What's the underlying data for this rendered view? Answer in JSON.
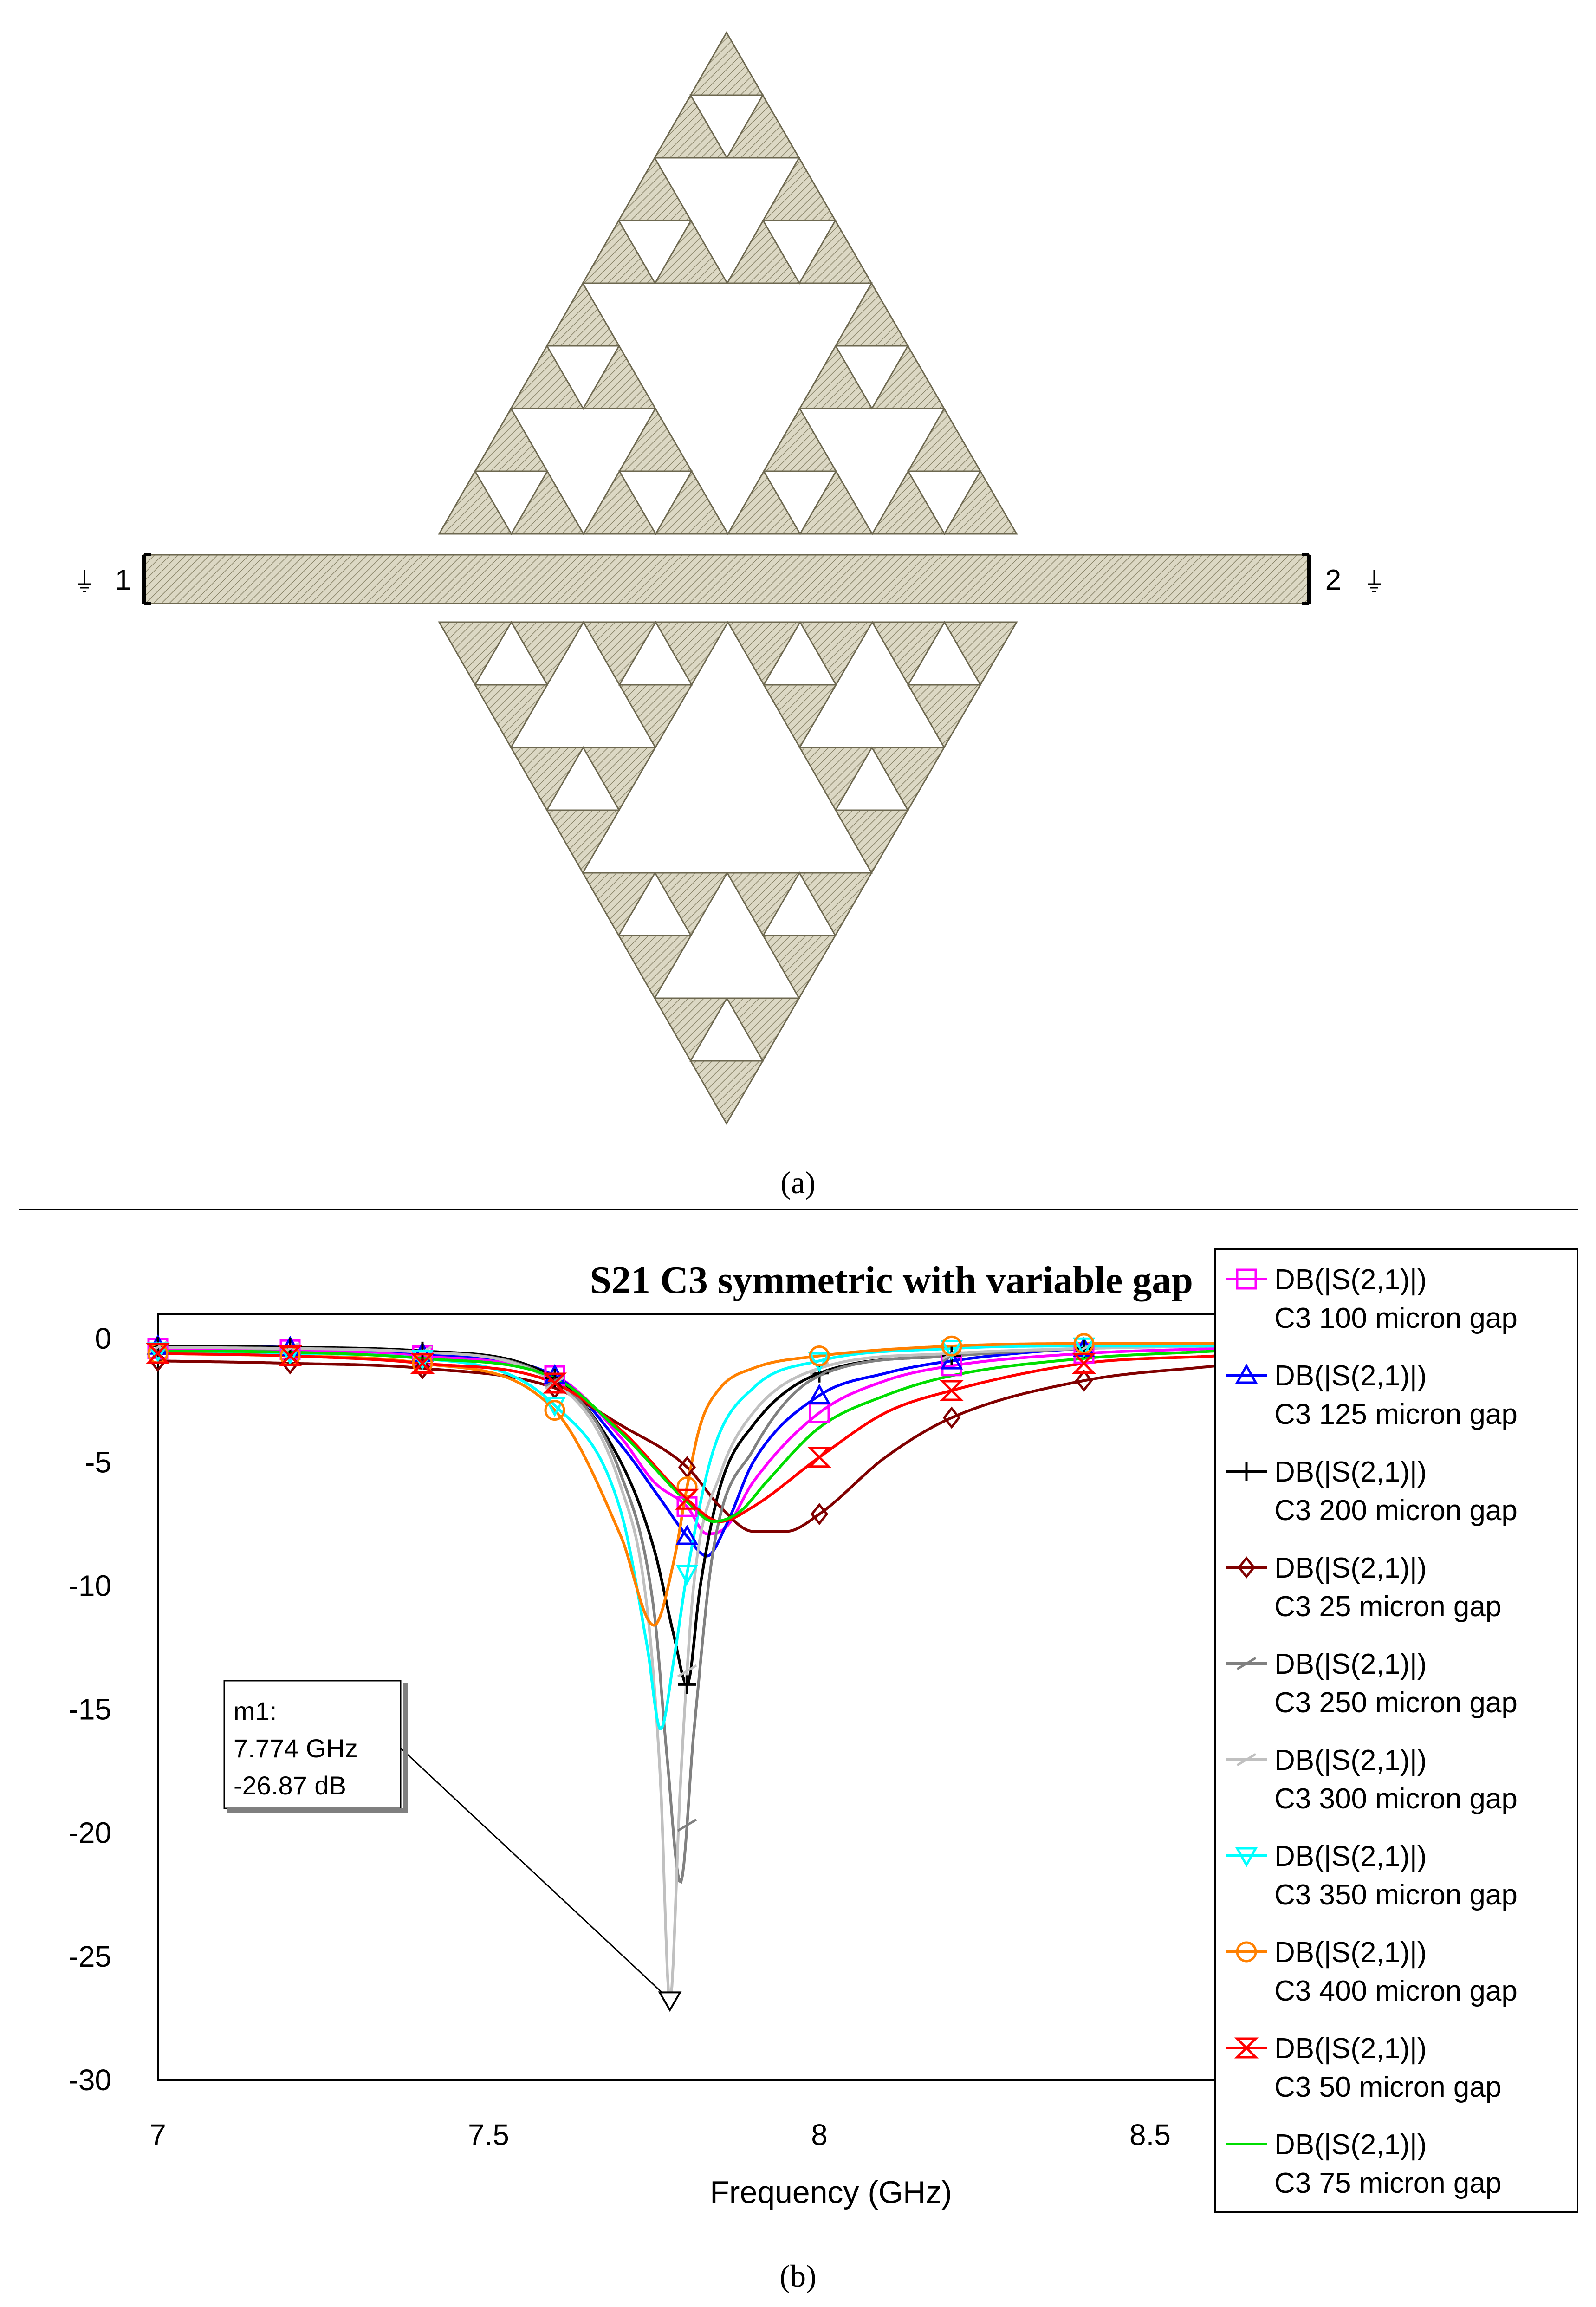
{
  "panel_a": {
    "caption": "(a)",
    "port_1": "1",
    "port_2": "2"
  },
  "panel_b": {
    "caption": "(b)"
  },
  "chart_data": {
    "type": "line",
    "title": "S21 C3 symmetric with variable gap",
    "xlabel": "Frequency (GHz)",
    "ylabel": "",
    "xlim": [
      7,
      8.6
    ],
    "ylim": [
      -30,
      1
    ],
    "xticks": [
      7,
      7.5,
      8,
      8.5
    ],
    "yticks": [
      0,
      -5,
      -10,
      -15,
      -20,
      -25,
      -30
    ],
    "grid": false,
    "legend": "right",
    "marker_x": [
      7.0,
      7.2,
      7.4,
      7.6,
      7.8,
      8.0,
      8.2,
      8.4
    ],
    "series": [
      {
        "name": "DB(|S(2,1)|)",
        "desc": "C3 100 micron gap",
        "color": "#ff00ff",
        "marker": "square",
        "x": [
          7.0,
          7.2,
          7.4,
          7.6,
          7.7,
          7.75,
          7.8,
          7.83,
          7.86,
          7.9,
          8.0,
          8.1,
          8.2,
          8.4,
          8.6
        ],
        "y": [
          -0.4,
          -0.45,
          -0.7,
          -1.5,
          -4.0,
          -5.8,
          -6.8,
          -7.9,
          -7.6,
          -5.8,
          -3.0,
          -1.7,
          -1.1,
          -0.6,
          -0.4
        ]
      },
      {
        "name": "DB(|S(2,1)|)",
        "desc": "C3 125 micron gap",
        "color": "#0000ff",
        "marker": "triangle-up",
        "x": [
          7.0,
          7.2,
          7.4,
          7.6,
          7.7,
          7.76,
          7.8,
          7.83,
          7.86,
          7.9,
          8.0,
          8.1,
          8.2,
          8.4,
          8.6
        ],
        "y": [
          -0.3,
          -0.35,
          -0.6,
          -1.5,
          -4.3,
          -6.5,
          -8.0,
          -8.8,
          -7.5,
          -5.0,
          -2.3,
          -1.4,
          -0.9,
          -0.4,
          -0.3
        ]
      },
      {
        "name": "DB(|S(2,1)|)",
        "desc": "C3 200 micron gap",
        "color": "#000000",
        "marker": "plus",
        "x": [
          7.0,
          7.2,
          7.4,
          7.6,
          7.7,
          7.75,
          7.78,
          7.8,
          7.82,
          7.85,
          7.9,
          8.0,
          8.2,
          8.4,
          8.6
        ],
        "y": [
          -0.3,
          -0.35,
          -0.5,
          -1.6,
          -5.0,
          -8.5,
          -12.0,
          -14.0,
          -10.0,
          -6.0,
          -3.5,
          -1.4,
          -0.7,
          -0.4,
          -0.3
        ]
      },
      {
        "name": "DB(|S(2,1)|)",
        "desc": "C3 25 micron gap",
        "color": "#800000",
        "marker": "diamond",
        "x": [
          7.0,
          7.2,
          7.4,
          7.6,
          7.7,
          7.8,
          7.85,
          7.9,
          7.95,
          8.0,
          8.1,
          8.2,
          8.4,
          8.6
        ],
        "y": [
          -0.9,
          -1.0,
          -1.2,
          -2.0,
          -3.5,
          -5.2,
          -6.8,
          -7.8,
          -7.8,
          -7.1,
          -4.8,
          -3.2,
          -1.7,
          -1.1
        ]
      },
      {
        "name": "DB(|S(2,1)|)",
        "desc": "C3 250  micron gap",
        "color": "#808080",
        "marker": "slash",
        "x": [
          7.0,
          7.2,
          7.4,
          7.6,
          7.7,
          7.75,
          7.77,
          7.79,
          7.81,
          7.84,
          7.9,
          8.0,
          8.2,
          8.4,
          8.6
        ],
        "y": [
          -0.35,
          -0.4,
          -0.55,
          -1.7,
          -5.5,
          -11.0,
          -17.0,
          -22.0,
          -16.0,
          -8.5,
          -4.5,
          -1.5,
          -0.7,
          -0.4,
          -0.3
        ]
      },
      {
        "name": "DB(|S(2,1)|)",
        "desc": "C3 300 micron gap",
        "color": "#c0c0c0",
        "marker": "slash",
        "x": [
          7.0,
          7.2,
          7.4,
          7.6,
          7.7,
          7.74,
          7.76,
          7.774,
          7.79,
          7.81,
          7.85,
          7.9,
          8.0,
          8.2,
          8.4,
          8.6
        ],
        "y": [
          -0.35,
          -0.4,
          -0.55,
          -1.8,
          -6.0,
          -11.0,
          -18.0,
          -26.87,
          -18.0,
          -10.0,
          -5.5,
          -3.0,
          -1.2,
          -0.6,
          -0.4,
          -0.3
        ]
      },
      {
        "name": "DB(|S(2,1)|)",
        "desc": "C3 350 micron gap",
        "color": "#00ffff",
        "marker": "triangle-down",
        "x": [
          7.0,
          7.2,
          7.4,
          7.6,
          7.7,
          7.74,
          7.76,
          7.78,
          7.8,
          7.84,
          7.9,
          8.0,
          8.2,
          8.4,
          8.6
        ],
        "y": [
          -0.5,
          -0.6,
          -0.8,
          -2.7,
          -7.0,
          -12.5,
          -15.8,
          -13.0,
          -9.5,
          -4.5,
          -2.0,
          -0.9,
          -0.4,
          -0.3,
          -0.3
        ]
      },
      {
        "name": "DB(|S(2,1)|)",
        "desc": "C3 400 micron gap",
        "color": "#ff8000",
        "marker": "circle",
        "x": [
          7.0,
          7.2,
          7.4,
          7.6,
          7.7,
          7.75,
          7.78,
          7.8,
          7.82,
          7.85,
          7.9,
          8.0,
          8.2,
          8.4,
          8.6
        ],
        "y": [
          -0.6,
          -0.7,
          -1.0,
          -2.9,
          -8.0,
          -11.6,
          -9.0,
          -6.0,
          -3.5,
          -2.0,
          -1.2,
          -0.7,
          -0.3,
          -0.2,
          -0.2
        ]
      },
      {
        "name": "DB(|S(2,1)|)",
        "desc": "C3 50 micron gap",
        "color": "#ff0000",
        "marker": "hourglass",
        "x": [
          7.0,
          7.2,
          7.4,
          7.6,
          7.7,
          7.8,
          7.85,
          7.9,
          8.0,
          8.1,
          8.2,
          8.4,
          8.6
        ],
        "y": [
          -0.6,
          -0.7,
          -1.0,
          -1.8,
          -3.7,
          -6.5,
          -7.4,
          -6.8,
          -4.8,
          -3.0,
          -2.1,
          -1.0,
          -0.7
        ]
      },
      {
        "name": "DB(|S(2,1)|)",
        "desc": "C3 75 micron gap",
        "color": "#00dd00",
        "marker": "none",
        "x": [
          7.0,
          7.2,
          7.4,
          7.6,
          7.7,
          7.8,
          7.84,
          7.88,
          7.92,
          8.0,
          8.1,
          8.2,
          8.4,
          8.6
        ],
        "y": [
          -0.5,
          -0.55,
          -0.8,
          -1.6,
          -3.8,
          -6.6,
          -7.4,
          -7.0,
          -5.8,
          -3.6,
          -2.3,
          -1.5,
          -0.8,
          -0.5
        ]
      }
    ],
    "annotations": [
      {
        "label": "m1:",
        "freq": "7.774 GHz",
        "value": "-26.87 dB",
        "x": 7.774,
        "y": -26.87
      }
    ]
  }
}
